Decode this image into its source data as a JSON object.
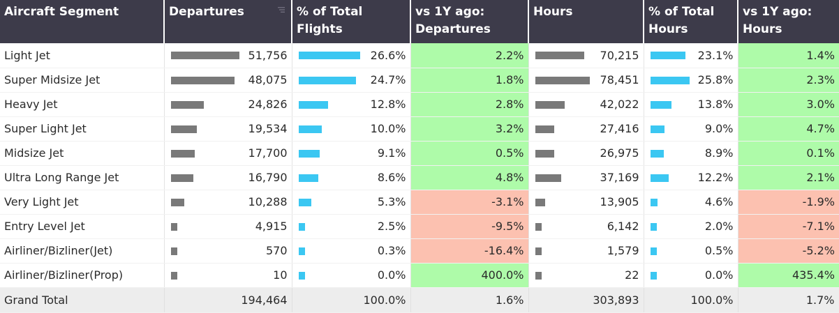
{
  "headers": {
    "segment": "Aircraft Segment",
    "departures": "Departures",
    "pct_flights": "% of Total Flights",
    "vs_departures": "vs 1Y ago: Departures",
    "hours": "Hours",
    "pct_hours": "% of Total Hours",
    "vs_hours": "vs 1Y ago: Hours"
  },
  "colors": {
    "header_bg": "#3d3b4a",
    "bar_gray": "#797979",
    "bar_blue": "#3bc7f2",
    "positive": "#aefba9",
    "negative": "#fcc1b0",
    "total_bg": "#ededed"
  },
  "icons": {
    "sort": "sort-icon"
  },
  "chart_data": {
    "type": "table",
    "columns": [
      "Aircraft Segment",
      "Departures",
      "% of Total Flights",
      "vs 1Y ago: Departures",
      "Hours",
      "% of Total Hours",
      "vs 1Y ago: Hours"
    ],
    "rows": [
      {
        "segment": "Light Jet",
        "departures": "51,756",
        "departures_value": 51756,
        "pct_flights": "26.6%",
        "pct_flights_value": 26.6,
        "vs_dep": "2.2%",
        "vs_dep_value": 2.2,
        "hours": "70,215",
        "hours_value": 70215,
        "pct_hours": "23.1%",
        "pct_hours_value": 23.1,
        "vs_hours": "1.4%",
        "vs_hours_value": 1.4
      },
      {
        "segment": "Super Midsize Jet",
        "departures": "48,075",
        "departures_value": 48075,
        "pct_flights": "24.7%",
        "pct_flights_value": 24.7,
        "vs_dep": "1.8%",
        "vs_dep_value": 1.8,
        "hours": "78,451",
        "hours_value": 78451,
        "pct_hours": "25.8%",
        "pct_hours_value": 25.8,
        "vs_hours": "2.3%",
        "vs_hours_value": 2.3
      },
      {
        "segment": "Heavy Jet",
        "departures": "24,826",
        "departures_value": 24826,
        "pct_flights": "12.8%",
        "pct_flights_value": 12.8,
        "vs_dep": "2.8%",
        "vs_dep_value": 2.8,
        "hours": "42,022",
        "hours_value": 42022,
        "pct_hours": "13.8%",
        "pct_hours_value": 13.8,
        "vs_hours": "3.0%",
        "vs_hours_value": 3.0
      },
      {
        "segment": "Super Light Jet",
        "departures": "19,534",
        "departures_value": 19534,
        "pct_flights": "10.0%",
        "pct_flights_value": 10.0,
        "vs_dep": "3.2%",
        "vs_dep_value": 3.2,
        "hours": "27,416",
        "hours_value": 27416,
        "pct_hours": "9.0%",
        "pct_hours_value": 9.0,
        "vs_hours": "4.7%",
        "vs_hours_value": 4.7
      },
      {
        "segment": "Midsize Jet",
        "departures": "17,700",
        "departures_value": 17700,
        "pct_flights": "9.1%",
        "pct_flights_value": 9.1,
        "vs_dep": "0.5%",
        "vs_dep_value": 0.5,
        "hours": "26,975",
        "hours_value": 26975,
        "pct_hours": "8.9%",
        "pct_hours_value": 8.9,
        "vs_hours": "0.1%",
        "vs_hours_value": 0.1
      },
      {
        "segment": "Ultra Long Range Jet",
        "departures": "16,790",
        "departures_value": 16790,
        "pct_flights": "8.6%",
        "pct_flights_value": 8.6,
        "vs_dep": "4.8%",
        "vs_dep_value": 4.8,
        "hours": "37,169",
        "hours_value": 37169,
        "pct_hours": "12.2%",
        "pct_hours_value": 12.2,
        "vs_hours": "2.1%",
        "vs_hours_value": 2.1
      },
      {
        "segment": "Very Light Jet",
        "departures": "10,288",
        "departures_value": 10288,
        "pct_flights": "5.3%",
        "pct_flights_value": 5.3,
        "vs_dep": "-3.1%",
        "vs_dep_value": -3.1,
        "hours": "13,905",
        "hours_value": 13905,
        "pct_hours": "4.6%",
        "pct_hours_value": 4.6,
        "vs_hours": "-1.9%",
        "vs_hours_value": -1.9
      },
      {
        "segment": "Entry Level Jet",
        "departures": "4,915",
        "departures_value": 4915,
        "pct_flights": "2.5%",
        "pct_flights_value": 2.5,
        "vs_dep": "-9.5%",
        "vs_dep_value": -9.5,
        "hours": "6,142",
        "hours_value": 6142,
        "pct_hours": "2.0%",
        "pct_hours_value": 2.0,
        "vs_hours": "-7.1%",
        "vs_hours_value": -7.1
      },
      {
        "segment": "Airliner/Bizliner(Jet)",
        "departures": "570",
        "departures_value": 570,
        "pct_flights": "0.3%",
        "pct_flights_value": 0.3,
        "vs_dep": "-16.4%",
        "vs_dep_value": -16.4,
        "hours": "1,579",
        "hours_value": 1579,
        "pct_hours": "0.5%",
        "pct_hours_value": 0.5,
        "vs_hours": "-5.2%",
        "vs_hours_value": -5.2
      },
      {
        "segment": "Airliner/Bizliner(Prop)",
        "departures": "10",
        "departures_value": 10,
        "pct_flights": "0.0%",
        "pct_flights_value": 0.0,
        "vs_dep": "400.0%",
        "vs_dep_value": 400.0,
        "hours": "22",
        "hours_value": 22,
        "pct_hours": "0.0%",
        "pct_hours_value": 0.0,
        "vs_hours": "435.4%",
        "vs_hours_value": 435.4
      }
    ],
    "total": {
      "segment": "Grand Total",
      "departures": "194,464",
      "pct_flights": "100.0%",
      "vs_dep": "1.6%",
      "hours": "303,893",
      "pct_hours": "100.0%",
      "vs_hours": "1.7%"
    }
  }
}
